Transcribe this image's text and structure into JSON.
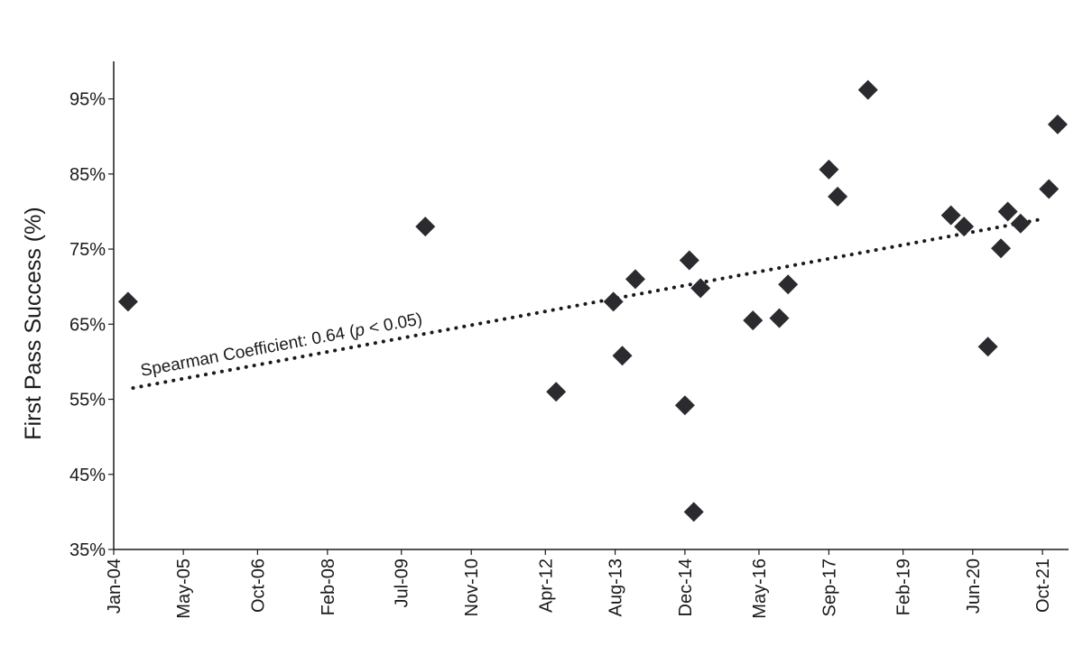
{
  "chart_data": {
    "type": "scatter",
    "title": "",
    "ylabel": "First Pass Success (%)",
    "xlabel": "",
    "ylim": [
      35,
      100
    ],
    "xlim": [
      "2004-01-01",
      "2022-04-01"
    ],
    "y_ticks": [
      35,
      45,
      55,
      65,
      75,
      85,
      95
    ],
    "y_tick_labels": [
      "35%",
      "45%",
      "55%",
      "65%",
      "75%",
      "85%",
      "95%"
    ],
    "x_ticks": [
      "2004-01-01",
      "2005-05-01",
      "2006-10-01",
      "2008-02-01",
      "2009-07-01",
      "2010-11-01",
      "2012-04-01",
      "2013-08-01",
      "2014-12-01",
      "2016-05-01",
      "2017-09-01",
      "2019-02-01",
      "2020-06-01",
      "2021-10-01"
    ],
    "x_tick_labels": [
      "Jan-04",
      "May-05",
      "Oct-06",
      "Feb-08",
      "Jul-09",
      "Nov-10",
      "Apr-12",
      "Aug-13",
      "Dec-14",
      "May-16",
      "Sep-17",
      "Feb-19",
      "Jun-20",
      "Oct-21"
    ],
    "marker": "diamond",
    "marker_color": "#2b2b2f",
    "grid": false,
    "points": [
      {
        "x": "2004-04-10",
        "y": 68
      },
      {
        "x": "2009-12-15",
        "y": 78
      },
      {
        "x": "2012-06-15",
        "y": 56
      },
      {
        "x": "2013-07-20",
        "y": 68
      },
      {
        "x": "2013-09-20",
        "y": 60.8
      },
      {
        "x": "2013-12-20",
        "y": 71
      },
      {
        "x": "2014-12-01",
        "y": 54.2
      },
      {
        "x": "2015-01-01",
        "y": 73.5
      },
      {
        "x": "2015-02-01",
        "y": 40
      },
      {
        "x": "2015-03-20",
        "y": 69.8
      },
      {
        "x": "2016-03-20",
        "y": 65.5
      },
      {
        "x": "2016-09-20",
        "y": 65.8
      },
      {
        "x": "2016-11-20",
        "y": 70.3
      },
      {
        "x": "2017-09-01",
        "y": 85.6
      },
      {
        "x": "2017-11-01",
        "y": 82
      },
      {
        "x": "2018-06-01",
        "y": 96.2
      },
      {
        "x": "2020-01-01",
        "y": 79.5
      },
      {
        "x": "2020-04-01",
        "y": 78
      },
      {
        "x": "2020-09-15",
        "y": 62
      },
      {
        "x": "2020-12-15",
        "y": 75.1
      },
      {
        "x": "2021-02-01",
        "y": 80
      },
      {
        "x": "2021-05-01",
        "y": 78.4
      },
      {
        "x": "2021-11-15",
        "y": 83
      },
      {
        "x": "2022-01-15",
        "y": 91.6
      }
    ],
    "trendline": {
      "style": "dotted",
      "start": {
        "x": "2004-05-15",
        "y": 56.5
      },
      "end": {
        "x": "2021-10-01",
        "y": 79
      },
      "label_prefix": "Spearman Coefficient: 0.64 (",
      "label_italic": "p",
      "label_suffix": " < 0.05)"
    }
  }
}
